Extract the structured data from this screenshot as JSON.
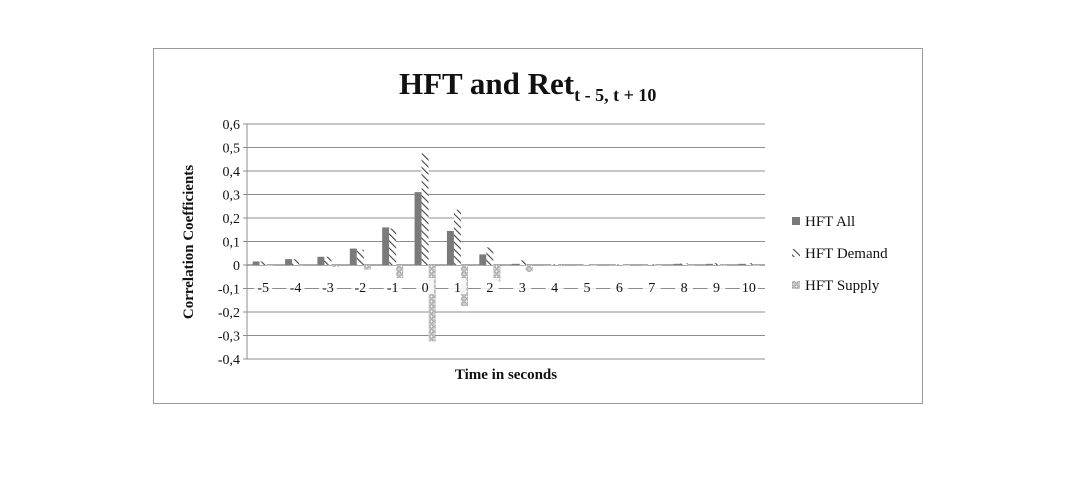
{
  "chart_data": {
    "type": "bar",
    "title": "HFT and Ret",
    "title_subscript": "t - 5, t + 10",
    "xlabel": "Time in seconds",
    "ylabel": "Correlation Coefficients",
    "categories": [
      "-5",
      "-4",
      "-3",
      "-2",
      "-1",
      "0",
      "1",
      "2",
      "3",
      "4",
      "5",
      "6",
      "7",
      "8",
      "9",
      "10"
    ],
    "ylim": [
      -0.4,
      0.6
    ],
    "yticks": [
      "-0,4",
      "-0,3",
      "-0,2",
      "-0,1",
      "0",
      "0,1",
      "0,2",
      "0,3",
      "0,4",
      "0,5",
      "0,6"
    ],
    "grid": true,
    "legend_position": "right",
    "series": [
      {
        "name": "HFT All",
        "pattern": "solid",
        "color": "#7a7a7a",
        "values": [
          0.015,
          0.025,
          0.035,
          0.07,
          0.16,
          0.31,
          0.145,
          0.045,
          0.005,
          0.0,
          0.0,
          0.0,
          0.0,
          0.005,
          0.005,
          0.005
        ]
      },
      {
        "name": "HFT Demand",
        "pattern": "diagonal",
        "color": "#555555",
        "values": [
          0.015,
          0.025,
          0.035,
          0.065,
          0.155,
          0.475,
          0.235,
          0.075,
          0.02,
          0.003,
          0.002,
          0.002,
          0.003,
          0.008,
          0.008,
          0.008
        ]
      },
      {
        "name": "HFT Supply",
        "pattern": "dotted",
        "color": "#9a9a9a",
        "values": [
          -0.003,
          -0.005,
          -0.008,
          -0.02,
          -0.055,
          -0.325,
          -0.175,
          -0.07,
          -0.03,
          -0.005,
          -0.002,
          -0.002,
          -0.002,
          -0.003,
          -0.003,
          -0.003
        ]
      }
    ]
  }
}
